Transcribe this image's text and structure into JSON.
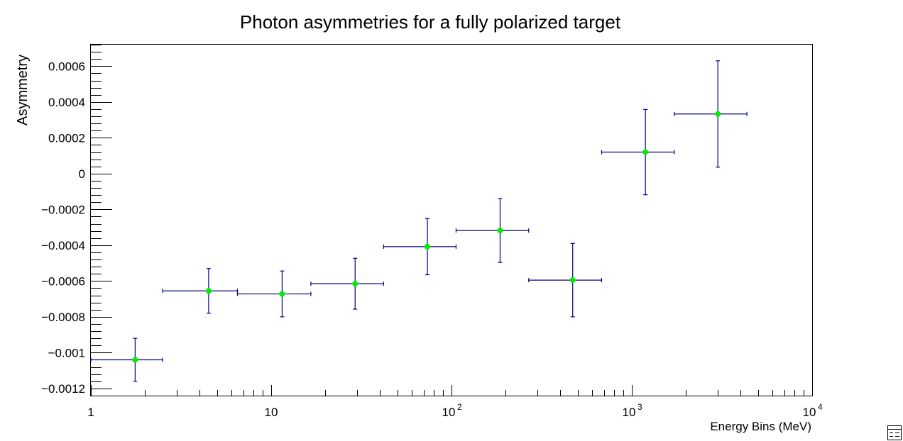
{
  "chart_data": {
    "type": "scatter",
    "title": "Photon asymmetries for a fully polarized target",
    "xlabel": "Energy Bins (MeV)",
    "ylabel": "Asymmetry",
    "x_scale": "log",
    "xlim": [
      1,
      10000
    ],
    "ylim": [
      -0.00124,
      0.00072
    ],
    "grid": false,
    "legend": "none",
    "colors": {
      "marker": "#00ee00",
      "error_bar": "#000080",
      "axes": "#000000"
    },
    "x_ticks": [
      {
        "value": 1,
        "base": "1",
        "exp": ""
      },
      {
        "value": 10,
        "base": "10",
        "exp": ""
      },
      {
        "value": 100,
        "base": "10",
        "exp": "2"
      },
      {
        "value": 1000,
        "base": "10",
        "exp": "3"
      },
      {
        "value": 10000,
        "base": "10",
        "exp": "4"
      }
    ],
    "y_ticks": [
      {
        "value": 0.0006,
        "label": "0.0006"
      },
      {
        "value": 0.0004,
        "label": "0.0004"
      },
      {
        "value": 0.0002,
        "label": "0.0002"
      },
      {
        "value": 0,
        "label": "0"
      },
      {
        "value": -0.0002,
        "label": "−0.0002"
      },
      {
        "value": -0.0004,
        "label": "−0.0004"
      },
      {
        "value": -0.0006,
        "label": "−0.0006"
      },
      {
        "value": -0.0008,
        "label": "−0.0008"
      },
      {
        "value": -0.001,
        "label": "−0.001"
      },
      {
        "value": -0.0012,
        "label": "−0.0012"
      }
    ],
    "series": [
      {
        "points": [
          {
            "x": 1.76,
            "xlo": 1.0,
            "xhi": 2.5,
            "y": -0.00104,
            "yerr": 0.00012
          },
          {
            "x": 4.5,
            "xlo": 2.5,
            "xhi": 6.5,
            "y": -0.000655,
            "yerr": 0.000125
          },
          {
            "x": 11.5,
            "xlo": 6.5,
            "xhi": 16.6,
            "y": -0.000672,
            "yerr": 0.000128
          },
          {
            "x": 29.2,
            "xlo": 16.6,
            "xhi": 42.0,
            "y": -0.000615,
            "yerr": 0.000142
          },
          {
            "x": 73.5,
            "xlo": 42.0,
            "xhi": 106.0,
            "y": -0.000408,
            "yerr": 0.000157
          },
          {
            "x": 186.0,
            "xlo": 106.0,
            "xhi": 268.0,
            "y": -0.000318,
            "yerr": 0.000178
          },
          {
            "x": 470.0,
            "xlo": 268.0,
            "xhi": 680.0,
            "y": -0.000595,
            "yerr": 0.000205
          },
          {
            "x": 1190.0,
            "xlo": 680.0,
            "xhi": 1720.0,
            "y": 0.00012,
            "yerr": 0.000238
          },
          {
            "x": 3000.0,
            "xlo": 1720.0,
            "xhi": 4350.0,
            "y": 0.000333,
            "yerr": 0.000297
          }
        ]
      }
    ]
  }
}
